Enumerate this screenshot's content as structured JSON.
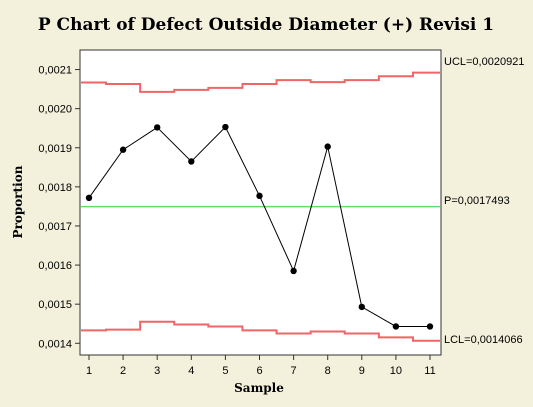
{
  "chart_data": {
    "type": "line",
    "title": "P Chart of Defect Outside Diameter (+) Revisi 1",
    "xlabel": "Sample",
    "ylabel": "Proportion",
    "x": [
      1,
      2,
      3,
      4,
      5,
      6,
      7,
      8,
      9,
      10,
      11
    ],
    "x_ticks": [
      "1",
      "2",
      "3",
      "4",
      "5",
      "6",
      "7",
      "8",
      "9",
      "10",
      "11"
    ],
    "y_ticks": [
      "0,0014",
      "0,0015",
      "0,0016",
      "0,0017",
      "0,0018",
      "0,0019",
      "0,0020",
      "0,0021"
    ],
    "ylim": [
      0.00137,
      0.00215
    ],
    "series": [
      {
        "values": [
          0.001772,
          0.001895,
          0.001952,
          0.001865,
          0.001953,
          0.001777,
          0.001585,
          0.001903,
          0.001493,
          0.001443,
          0.001443
        ],
        "color": "#000000"
      }
    ],
    "center_line": {
      "value": 0.0017493,
      "label": "P=0,0017493",
      "color": "#66dd66"
    },
    "ucl": {
      "values": [
        0.002067,
        0.002063,
        0.002043,
        0.002048,
        0.002053,
        0.002063,
        0.002073,
        0.002068,
        0.002073,
        0.002083,
        0.002092
      ],
      "label": "UCL=0,0020921",
      "color": "#ee6666"
    },
    "lcl": {
      "values": [
        0.001433,
        0.001435,
        0.001455,
        0.001448,
        0.001443,
        0.001433,
        0.001425,
        0.00143,
        0.001425,
        0.001415,
        0.0014066
      ],
      "label": "LCL=0,0014066",
      "color": "#ee6666"
    },
    "grid": false,
    "colors": {
      "background": "#f3f1dc",
      "plot_background": "#ffffff"
    }
  }
}
